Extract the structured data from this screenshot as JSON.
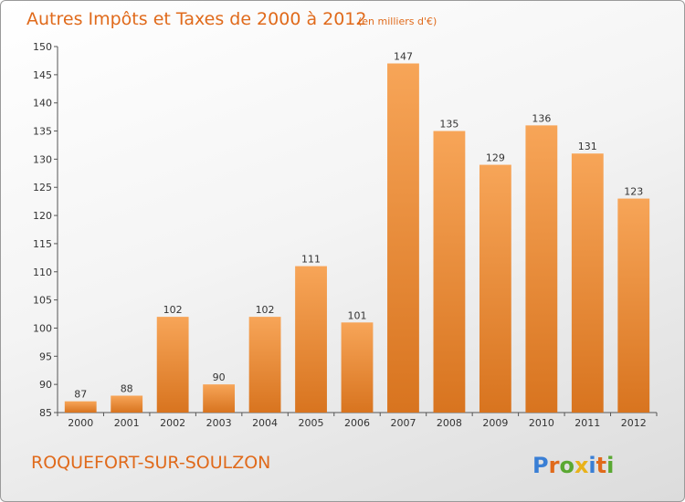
{
  "chart_data": {
    "type": "bar",
    "title": "Autres Impôts et Taxes de 2000 à 2012",
    "unit_note": "(en milliers d'€)",
    "categories": [
      "2000",
      "2001",
      "2002",
      "2003",
      "2004",
      "2005",
      "2006",
      "2007",
      "2008",
      "2009",
      "2010",
      "2011",
      "2012"
    ],
    "values": [
      87,
      88,
      102,
      90,
      102,
      111,
      101,
      147,
      135,
      129,
      136,
      131,
      123
    ],
    "value_labels": [
      "87",
      "88",
      "102",
      "90",
      "102",
      "111",
      "101",
      "147",
      "135",
      "129",
      "136",
      "131",
      "123"
    ],
    "ylim": [
      85,
      150
    ],
    "yticks": [
      85,
      90,
      95,
      100,
      105,
      110,
      115,
      120,
      125,
      130,
      135,
      140,
      145,
      150
    ],
    "ytick_labels": [
      "85",
      "90",
      "95",
      "100",
      "105",
      "110",
      "115",
      "120",
      "125",
      "130",
      "135",
      "140",
      "145",
      "150"
    ],
    "grid": false,
    "bar_color": "#f0913a"
  },
  "commune": "ROQUEFORT-SUR-SOULZON",
  "logo": {
    "letters": [
      "P",
      "r",
      "o",
      "x",
      "i",
      "t",
      "i"
    ],
    "colors": [
      "#3a7fd5",
      "#e06a1b",
      "#5aa832",
      "#e9b21a",
      "#3a7fd5",
      "#e06a1b",
      "#5aa832"
    ]
  }
}
